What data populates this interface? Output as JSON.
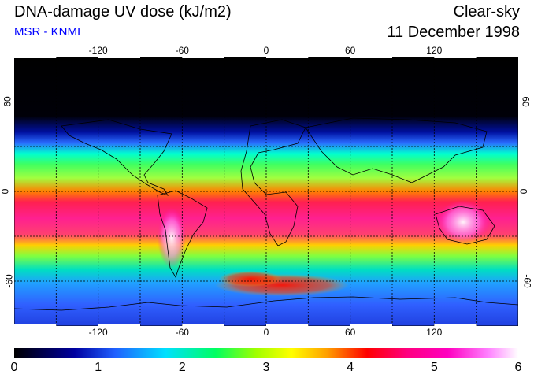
{
  "header": {
    "title": "DNA-damage UV dose (kJ/m2)",
    "subtitle": "MSR - KNMI",
    "condition": "Clear-sky",
    "date": "11 December 1998"
  },
  "map": {
    "projection": "equirectangular",
    "lon_range": [
      -180,
      180
    ],
    "lat_range": [
      -90,
      90
    ],
    "grid_lines": true,
    "lon_ticks": [
      "-120",
      "-60",
      "0",
      "60",
      "120"
    ],
    "lat_ticks_left": [
      "60",
      "0",
      "-60"
    ],
    "lat_ticks_right": [
      "60",
      "0",
      "-60"
    ]
  },
  "colorbar": {
    "min": 0,
    "max": 6,
    "tick_labels": [
      "0",
      "1",
      "2",
      "3",
      "4",
      "5",
      "6"
    ],
    "colors": [
      "#000000",
      "#0000a0",
      "#2060ff",
      "#00e0ff",
      "#00ff60",
      "#a0ff00",
      "#ffff00",
      "#ffa000",
      "#ff0000",
      "#ff0080",
      "#ff00c0",
      "#ff80ff",
      "#ffffff"
    ]
  }
}
